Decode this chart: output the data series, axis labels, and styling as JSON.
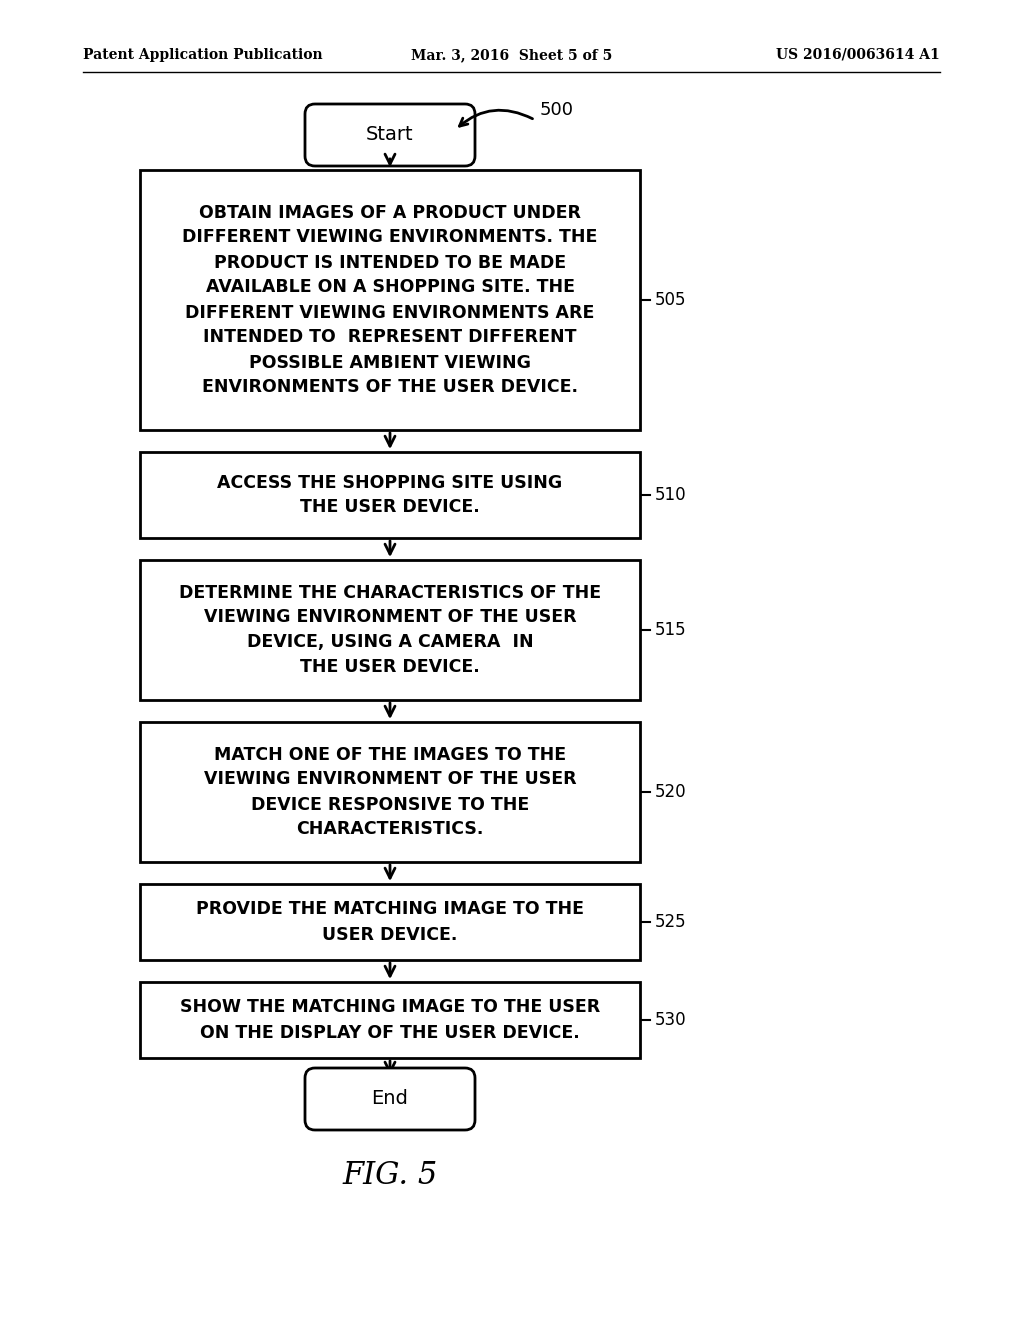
{
  "background_color": "#ffffff",
  "header_left": "Patent Application Publication",
  "header_mid": "Mar. 3, 2016  Sheet 5 of 5",
  "header_right": "US 2016/0063614 A1",
  "figure_label": "FIG. 5",
  "flow_label": "500",
  "start_label": "Start",
  "end_label": "End",
  "boxes": [
    {
      "label": "505",
      "text": "OBTAIN IMAGES OF A PRODUCT UNDER\nDIFFERENT VIEWING ENVIRONMENTS. THE\nPRODUCT IS INTENDED TO BE MADE\nAVAILABLE ON A SHOPPING SITE. THE\nDIFFERENT VIEWING ENVIRONMENTS ARE\nINTENDED TO  REPRESENT DIFFERENT\nPOSSIBLE AMBIENT VIEWING\nENVIRONMENTS OF THE USER DEVICE."
    },
    {
      "label": "510",
      "text": "ACCESS THE SHOPPING SITE USING\nTHE USER DEVICE."
    },
    {
      "label": "515",
      "text": "DETERMINE THE CHARACTERISTICS OF THE\nVIEWING ENVIRONMENT OF THE USER\nDEVICE, USING A CAMERA  IN\nTHE USER DEVICE."
    },
    {
      "label": "520",
      "text": "MATCH ONE OF THE IMAGES TO THE\nVIEWING ENVIRONMENT OF THE USER\nDEVICE RESPONSIVE TO THE\nCHARACTERISTICS."
    },
    {
      "label": "525",
      "text": "PROVIDE THE MATCHING IMAGE TO THE\nUSER DEVICE."
    },
    {
      "label": "530",
      "text": "SHOW THE MATCHING IMAGE TO THE USER\nON THE DISPLAY OF THE USER DEVICE."
    }
  ]
}
